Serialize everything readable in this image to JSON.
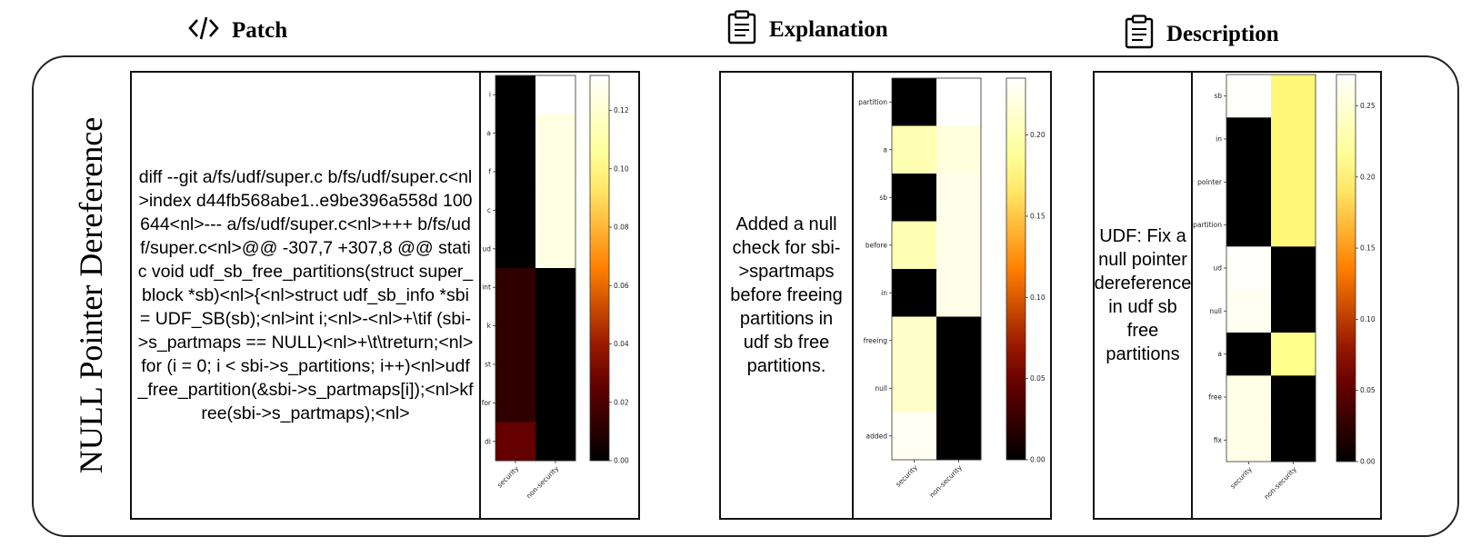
{
  "headers": {
    "patch": "Patch",
    "explanation": "Explanation",
    "description": "Description"
  },
  "icons": {
    "patch": "code-icon",
    "explanation": "clipboard-icon",
    "description": "clipboard-icon"
  },
  "row_label": "NULL Pointer Dereference",
  "patch_text": "diff --git a/fs/udf/super.c b/fs/udf/super.c<nl>index d44fb568abe1..e9be396a558d 100644<nl>--- a/fs/udf/super.c<nl>+++ b/fs/udf/super.c<nl>@@ -307,7 +307,8 @@ static void udf_sb_free_partitions(struct super_block *sb)<nl>{<nl>struct udf_sb_info *sbi = UDF_SB(sb);<nl>int i;<nl>-<nl>+\\tif (sbi->s_partmaps == NULL)<nl>+\\t\\treturn;<nl>for (i = 0; i < sbi->s_partitions; i++)<nl>udf_free_partition(&sbi->s_partmaps[i]);<nl>kfree(sbi->s_partmaps);<nl>",
  "explanation_text": "Added a null check for sbi->spartmaps before freeing partitions in udf sb free partitions.",
  "description_text": "UDF: Fix a null pointer dereference in udf sb free partitions",
  "chart_data": [
    {
      "type": "heatmap",
      "colormap": "afmhot",
      "x": [
        "security",
        "non-security"
      ],
      "y": [
        "i",
        "a",
        "f",
        "c",
        "ud",
        "int",
        "k",
        "st",
        "for",
        "di"
      ],
      "values": [
        [
          0.0,
          0.132
        ],
        [
          0.0,
          0.125
        ],
        [
          0.0,
          0.125
        ],
        [
          0.0,
          0.125
        ],
        [
          0.0,
          0.125
        ],
        [
          0.012,
          0.0
        ],
        [
          0.012,
          0.0
        ],
        [
          0.012,
          0.0
        ],
        [
          0.012,
          0.0
        ],
        [
          0.026,
          0.0
        ]
      ],
      "colorbar": {
        "ticks": [
          "0.00",
          "0.02",
          "0.04",
          "0.06",
          "0.08",
          "0.10",
          "0.12"
        ],
        "range": [
          0,
          0.132
        ]
      }
    },
    {
      "type": "heatmap",
      "colormap": "afmhot",
      "x": [
        "security",
        "non-security"
      ],
      "y": [
        "partition",
        "a",
        "sb",
        "before",
        "in",
        "freeing",
        "null",
        "added"
      ],
      "values": [
        [
          0.0,
          0.235
        ],
        [
          0.2,
          0.22
        ],
        [
          0.0,
          0.225
        ],
        [
          0.2,
          0.225
        ],
        [
          0.0,
          0.225
        ],
        [
          0.21,
          0.0
        ],
        [
          0.21,
          0.0
        ],
        [
          0.23,
          0.0
        ]
      ],
      "colorbar": {
        "ticks": [
          "0.00",
          "0.05",
          "0.10",
          "0.15",
          "0.20"
        ],
        "range": [
          0,
          0.235
        ]
      }
    },
    {
      "type": "heatmap",
      "colormap": "afmhot",
      "x": [
        "security",
        "non-security"
      ],
      "y": [
        "sb",
        "in",
        "pointer",
        "partition",
        "ud",
        "null",
        "a",
        "free",
        "fix"
      ],
      "values": [
        [
          0.27,
          0.2
        ],
        [
          0.0,
          0.2
        ],
        [
          0.0,
          0.2
        ],
        [
          0.0,
          0.2
        ],
        [
          0.27,
          0.0
        ],
        [
          0.265,
          0.0
        ],
        [
          0.0,
          0.21
        ],
        [
          0.26,
          0.0
        ],
        [
          0.26,
          0.0
        ]
      ],
      "colorbar": {
        "ticks": [
          "0.00",
          "0.05",
          "0.10",
          "0.15",
          "0.20",
          "0.25"
        ],
        "range": [
          0,
          0.272
        ]
      }
    }
  ]
}
